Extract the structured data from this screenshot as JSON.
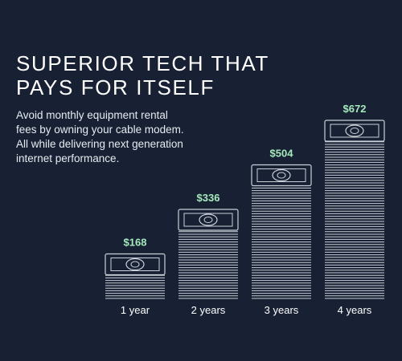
{
  "colors": {
    "background": "#182133",
    "accent_value": "#a6e9bd",
    "stack_line": "#c8cfd8",
    "text": "#ffffff"
  },
  "headline": {
    "line1": "SUPERIOR TECH THAT",
    "line2": "PAYS FOR ITSELF"
  },
  "description": {
    "line1": "Avoid monthly equipment rental",
    "line2": "fees by owning your cable modem.",
    "line3": "All while delivering next generation",
    "line4": "internet performance."
  },
  "chart_data": {
    "type": "bar",
    "categories": [
      "1 year",
      "2 years",
      "3 years",
      "4 years"
    ],
    "values": [
      168,
      336,
      504,
      672
    ],
    "value_labels": [
      "$168",
      "$336",
      "$504",
      "$672"
    ],
    "title": "",
    "xlabel": "",
    "ylabel": "",
    "ylim": [
      0,
      672
    ],
    "grid": false,
    "bar_style": "stack-of-bills-icon"
  }
}
